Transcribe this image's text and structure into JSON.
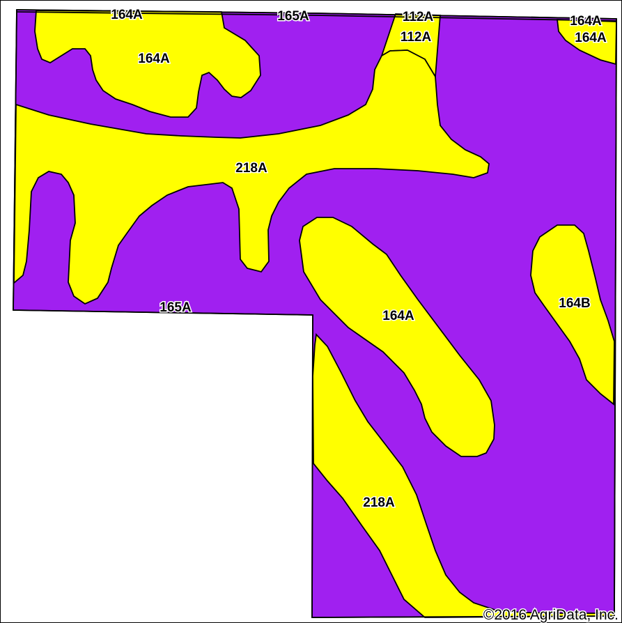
{
  "map": {
    "colors": {
      "background": "#ffffff",
      "unit_165A": "#a020f0",
      "unit_yellow": "#ffff00",
      "outline": "#000000"
    },
    "labels": {
      "top_164A": "164A",
      "top_165A": "165A",
      "top_112A": "112A",
      "top_164A_right": "164A",
      "upper_112A": "112A",
      "upper_right_164A": "164A",
      "upper_left_164A": "164A",
      "center_218A": "218A",
      "left_165A": "165A",
      "center_164A": "164A",
      "right_164B": "164B",
      "lower_218A": "218A"
    },
    "copyright": "©2016 AgriData, Inc."
  }
}
